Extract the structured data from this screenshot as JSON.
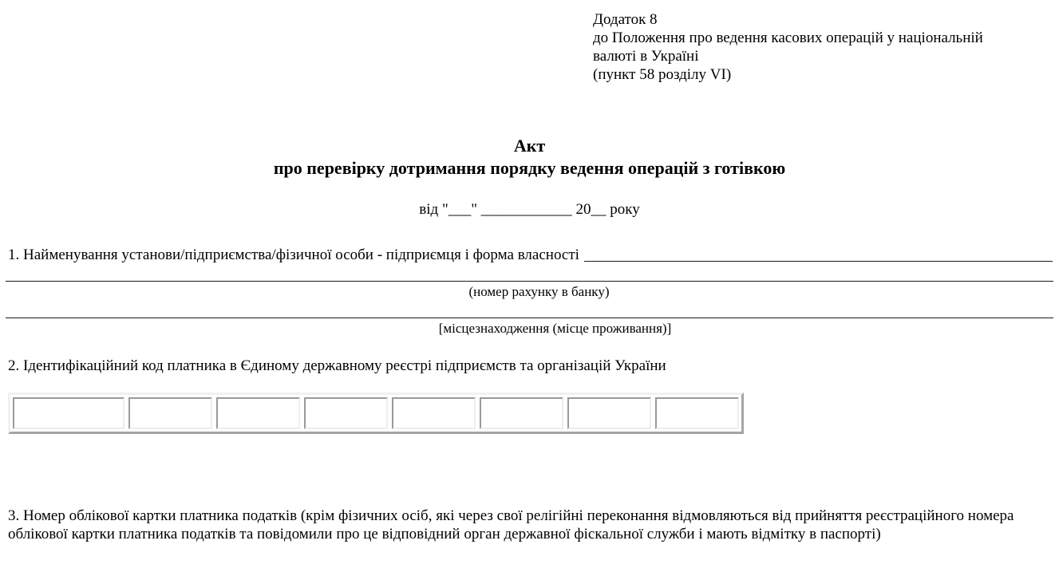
{
  "document": {
    "appendix": {
      "lines": [
        "Додаток 8",
        "до Положення про ведення касових операцій у національній",
        "валюті в Україні",
        "(пункт 58 розділу VI)"
      ]
    },
    "title": {
      "line1": "Акт",
      "line2": "про перевірку дотримання порядку ведення операцій з готівкою"
    },
    "date_line": "від \"___\" ____________ 20__ року",
    "section1": {
      "label": "1. Найменування установи/підприємства/фізичної особи - підприємця і форма власності",
      "caption_bank_account": "(номер рахунку в банку)",
      "caption_location": "[місцезнаходження (місце проживання)]"
    },
    "section2": {
      "label": "2. Ідентифікаційний код платника в Єдиному державному реєстрі підприємств та організацій України",
      "code_cells": [
        "",
        "",
        "",
        "",
        "",
        "",
        "",
        ""
      ]
    },
    "section3": {
      "label": "3. Номер облікової картки платника податків (крім фізичних осіб, які через свої релігійні переконання відмовляються від прийняття реєстраційного номера облікової картки платника податків та повідомили про це відповідний орган державної фіскальної служби і мають відмітку в паспорті)"
    }
  }
}
